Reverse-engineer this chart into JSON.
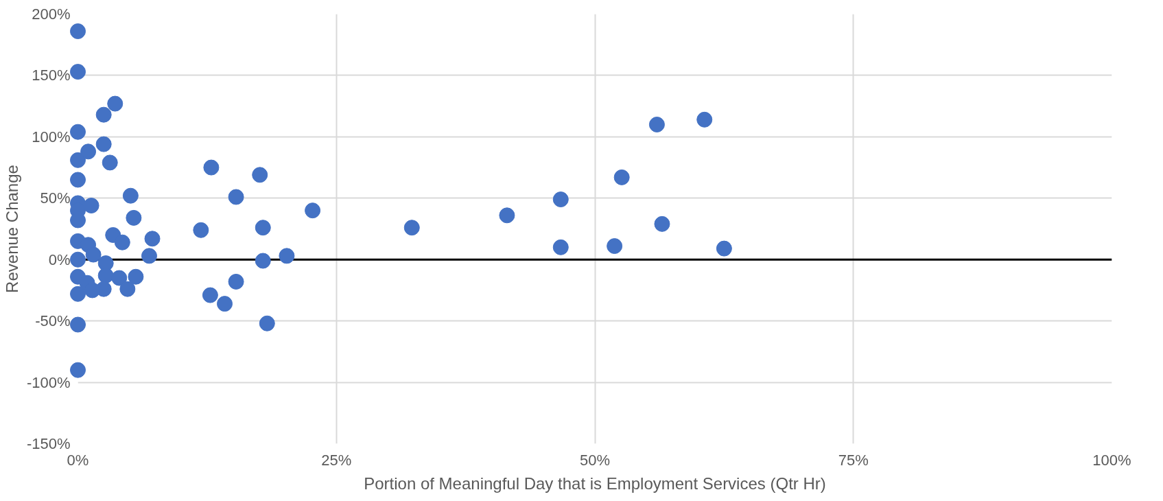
{
  "chart_data": {
    "type": "scatter",
    "xlabel": "Portion of Meaningful Day that is Employment Services (Qtr Hr)",
    "ylabel": "Revenue Change",
    "x": [
      0,
      0,
      0,
      0,
      0,
      0,
      0,
      0,
      1,
      1.3,
      2.5,
      3.6,
      2.5,
      3.1,
      5.1,
      5.4,
      3.4,
      4.3,
      7.2,
      6.9,
      0,
      0,
      0,
      0,
      1,
      1.5,
      0.9,
      2.7,
      2.7,
      4,
      5.6,
      4.8,
      2.5,
      1.4,
      0,
      0,
      11.9,
      12.9,
      12.8,
      14.2,
      15.3,
      15.3,
      17.6,
      17.9,
      17.9,
      18.3,
      20.2,
      22.7,
      32.3,
      41.5,
      46.7,
      46.7,
      52.6,
      56,
      51.9,
      56.5,
      60.6,
      62.5
    ],
    "series": [
      {
        "color": "#4472c4",
        "values": [
          186,
          153,
          104,
          81,
          65,
          46,
          40,
          32,
          88,
          44,
          118,
          127,
          94,
          79,
          52,
          34,
          20,
          14,
          17,
          3,
          15,
          0,
          -14,
          -28,
          12,
          4,
          -19,
          -3,
          -13,
          -15,
          -14,
          -24,
          -24,
          -25,
          -53,
          -90,
          24,
          75,
          -29,
          -36,
          51,
          -18,
          69,
          26,
          -1,
          -52,
          3,
          40,
          26,
          36,
          49,
          10,
          67,
          110,
          11,
          29,
          114,
          9
        ]
      }
    ],
    "xlim": [
      0,
      100
    ],
    "xticks": [
      {
        "value": 0,
        "label": "0%"
      },
      {
        "value": 25,
        "label": "25%"
      },
      {
        "value": 50,
        "label": "50%"
      },
      {
        "value": 75,
        "label": "75%"
      },
      {
        "value": 100,
        "label": "100%"
      }
    ],
    "ylim": [
      -150,
      200
    ],
    "yticks": [
      {
        "value": -150,
        "label": "-150%"
      },
      {
        "value": -100,
        "label": "-100%"
      },
      {
        "value": -50,
        "label": "-50%"
      },
      {
        "value": 0,
        "label": "0%"
      },
      {
        "value": 50,
        "label": "50%"
      },
      {
        "value": 100,
        "label": "100%"
      },
      {
        "value": 150,
        "label": "150%"
      },
      {
        "value": 200,
        "label": "200%"
      }
    ],
    "grid": true,
    "marker": "circle",
    "ref_lines": [
      {
        "axis": "y",
        "value": 0,
        "color": "#000000"
      }
    ]
  }
}
